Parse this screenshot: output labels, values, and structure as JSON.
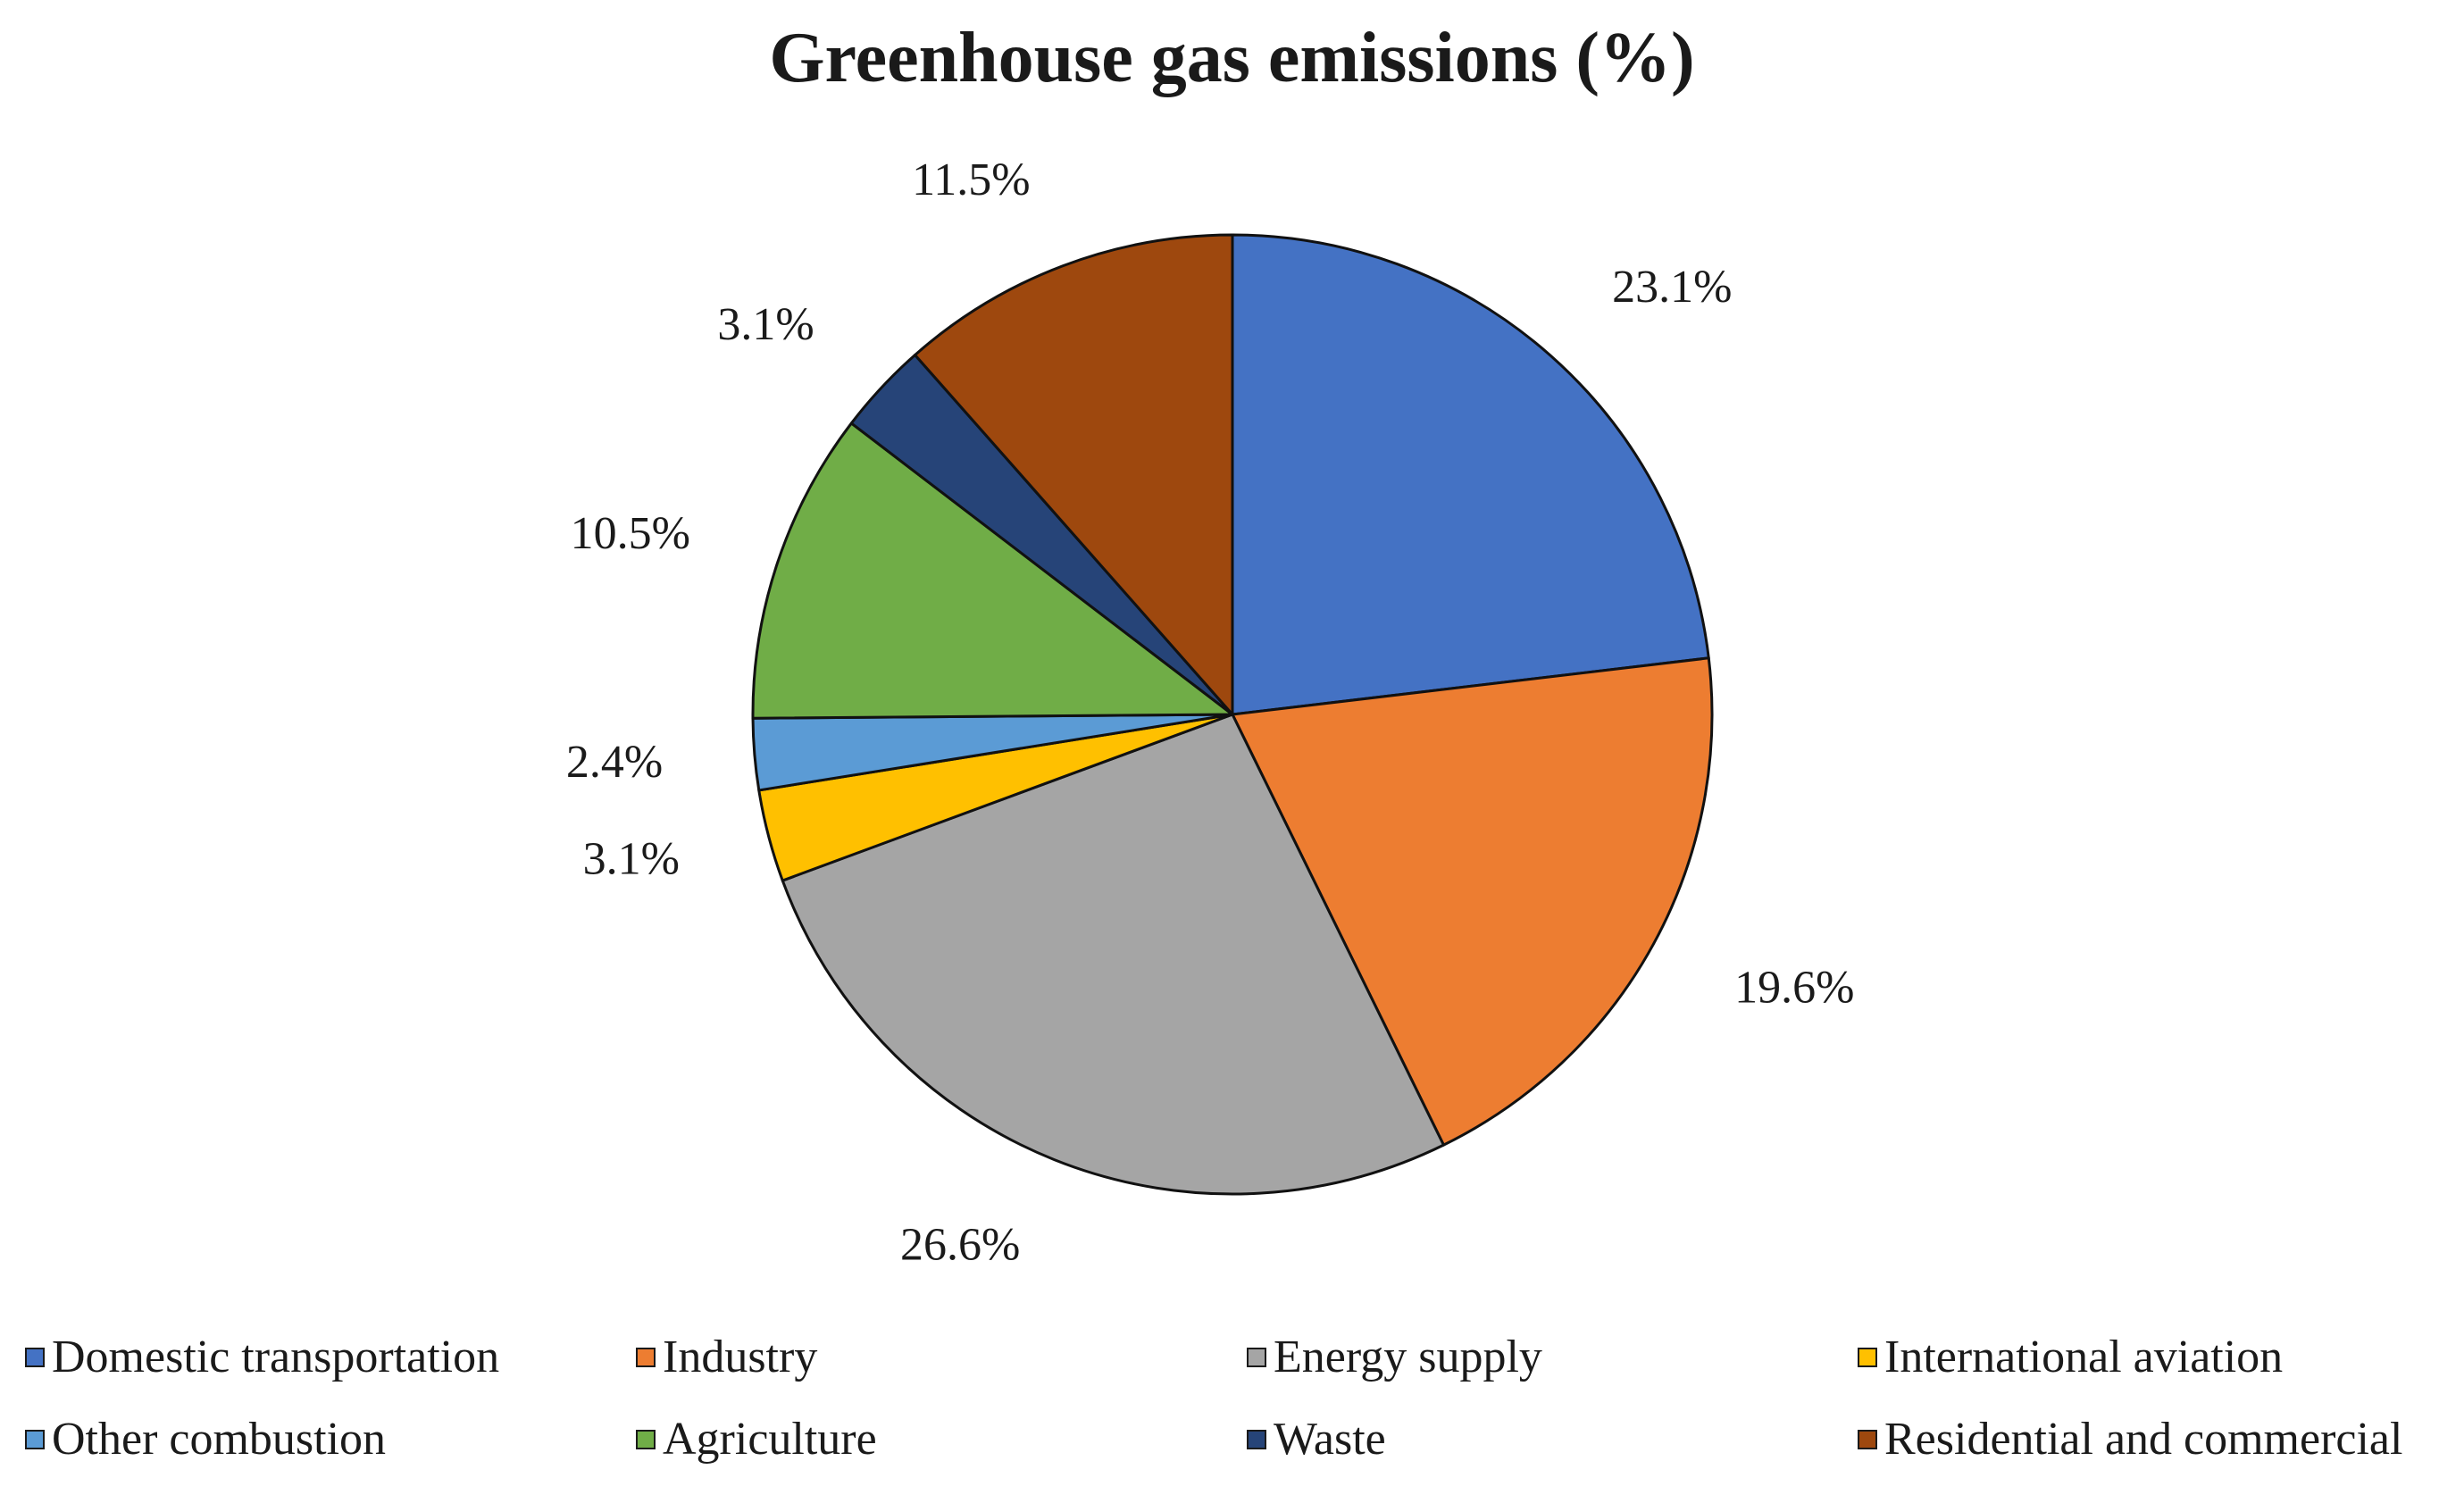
{
  "chart_data": {
    "type": "pie",
    "title": "Greenhouse gas emissions (%)",
    "slices": [
      {
        "name": "Domestic transportation",
        "value": 23.1,
        "label": "23.1%",
        "color": "#4472C4"
      },
      {
        "name": "Industry",
        "value": 19.6,
        "label": "19.6%",
        "color": "#ED7D31"
      },
      {
        "name": "Energy supply",
        "value": 26.6,
        "label": "26.6%",
        "color": "#A5A5A5"
      },
      {
        "name": "International aviation",
        "value": 3.1,
        "label": "3.1%",
        "color": "#FFC000"
      },
      {
        "name": "Other combustion",
        "value": 2.4,
        "label": "2.4%",
        "color": "#5B9BD5"
      },
      {
        "name": "Agriculture",
        "value": 10.5,
        "label": "10.5%",
        "color": "#70AD47"
      },
      {
        "name": "Waste",
        "value": 3.1,
        "label": "3.1%",
        "color": "#264478"
      },
      {
        "name": "Residential and commercial",
        "value": 11.5,
        "label": "11.5%",
        "color": "#9E480E"
      }
    ],
    "legend_placement": "bottom",
    "start_angle": "12 o'clock",
    "direction": "clockwise"
  }
}
